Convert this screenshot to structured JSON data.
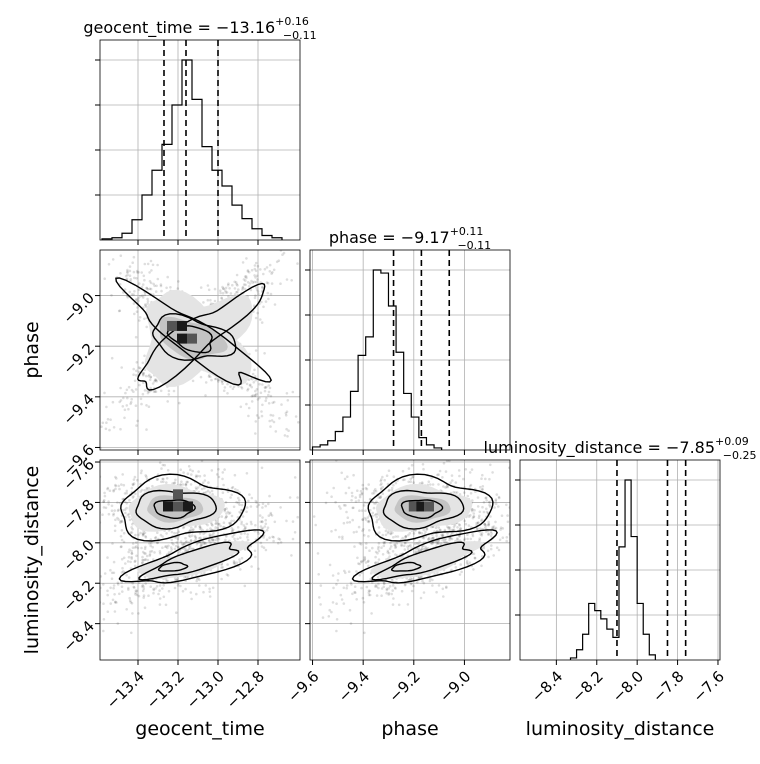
{
  "chart_data": {
    "type": "corner",
    "params": [
      {
        "name": "geocent_time",
        "median": "−13.16",
        "plus": "+0.16",
        "minus": "−0.11",
        "quantiles": [
          -13.27,
          -13.16,
          -13.0
        ],
        "range": [
          -13.59,
          -12.59
        ],
        "ticks": [
          {
            "v": -13.4,
            "label": "−13.4"
          },
          {
            "v": -13.2,
            "label": "−13.2"
          },
          {
            "v": -13.0,
            "label": "−13.0"
          },
          {
            "v": -12.8,
            "label": "−12.8"
          }
        ],
        "hist": {
          "edges_start": -13.58,
          "bin_width": 0.05,
          "counts": [
            1,
            2,
            6,
            18,
            40,
            62,
            85,
            120,
            160,
            125,
            83,
            62,
            48,
            31,
            19,
            10,
            4,
            2
          ]
        }
      },
      {
        "name": "phase",
        "median": "−9.17",
        "plus": "+0.11",
        "minus": "−0.11",
        "quantiles": [
          -9.28,
          -9.17,
          -9.06
        ],
        "range": [
          -9.61,
          -8.82
        ],
        "ticks": [
          {
            "v": -9.6,
            "label": "−9.6"
          },
          {
            "v": -9.4,
            "label": "−9.4"
          },
          {
            "v": -9.2,
            "label": "−9.2"
          },
          {
            "v": -9.0,
            "label": "−9.0"
          }
        ],
        "hist": {
          "edges_start": -9.6,
          "bin_width": 0.03,
          "counts": [
            3,
            5,
            9,
            18,
            32,
            57,
            92,
            110,
            175,
            172,
            140,
            95,
            55,
            32,
            12,
            5,
            2
          ]
        }
      },
      {
        "name": "luminosity_distance",
        "median": "−7.85",
        "plus": "+0.09",
        "minus": "−0.25",
        "quantiles": [
          -8.1,
          -7.85,
          -7.76
        ],
        "range": [
          -8.58,
          -7.59
        ],
        "ticks": [
          {
            "v": -8.4,
            "label": "−8.4"
          },
          {
            "v": -8.2,
            "label": "−8.2"
          },
          {
            "v": -8.0,
            "label": "−8.0"
          },
          {
            "v": -7.8,
            "label": "−7.8"
          },
          {
            "v": -7.6,
            "label": "−7.6"
          }
        ],
        "hist": {
          "edges_start": -8.33,
          "bin_width": 0.03,
          "counts": [
            2,
            10,
            25,
            55,
            48,
            40,
            30,
            22,
            110,
            175,
            120,
            55,
            25,
            5
          ]
        }
      }
    ],
    "pairs": [
      {
        "x": 0,
        "y": 1,
        "shape": "cross",
        "centers": [
          [
            -13.18,
            -9.17
          ],
          [
            -13.04,
            -9.15
          ]
        ],
        "peak_cells": [
          [
            -13.23,
            -9.12
          ],
          [
            -13.18,
            -9.12
          ],
          [
            -13.13,
            -9.17
          ],
          [
            -13.18,
            -9.17
          ]
        ]
      },
      {
        "x": 0,
        "y": 2,
        "shape": "two-blobs",
        "centers": [
          [
            -13.22,
            -7.83
          ],
          [
            -13.25,
            -8.12
          ]
        ],
        "peak_cells": [
          [
            -13.2,
            -7.76
          ],
          [
            -13.25,
            -7.82
          ],
          [
            -13.2,
            -7.82
          ],
          [
            -13.15,
            -7.82
          ]
        ]
      },
      {
        "x": 1,
        "y": 2,
        "shape": "two-blobs",
        "centers": [
          [
            -9.17,
            -7.83
          ],
          [
            -9.25,
            -8.12
          ]
        ],
        "peak_cells": [
          [
            -9.2,
            -7.82
          ],
          [
            -9.17,
            -7.82
          ],
          [
            -9.14,
            -7.82
          ]
        ]
      }
    ],
    "grid": true,
    "colors": {
      "line": "#000000",
      "grid": "#b0b0b0",
      "points": "#000000"
    }
  }
}
